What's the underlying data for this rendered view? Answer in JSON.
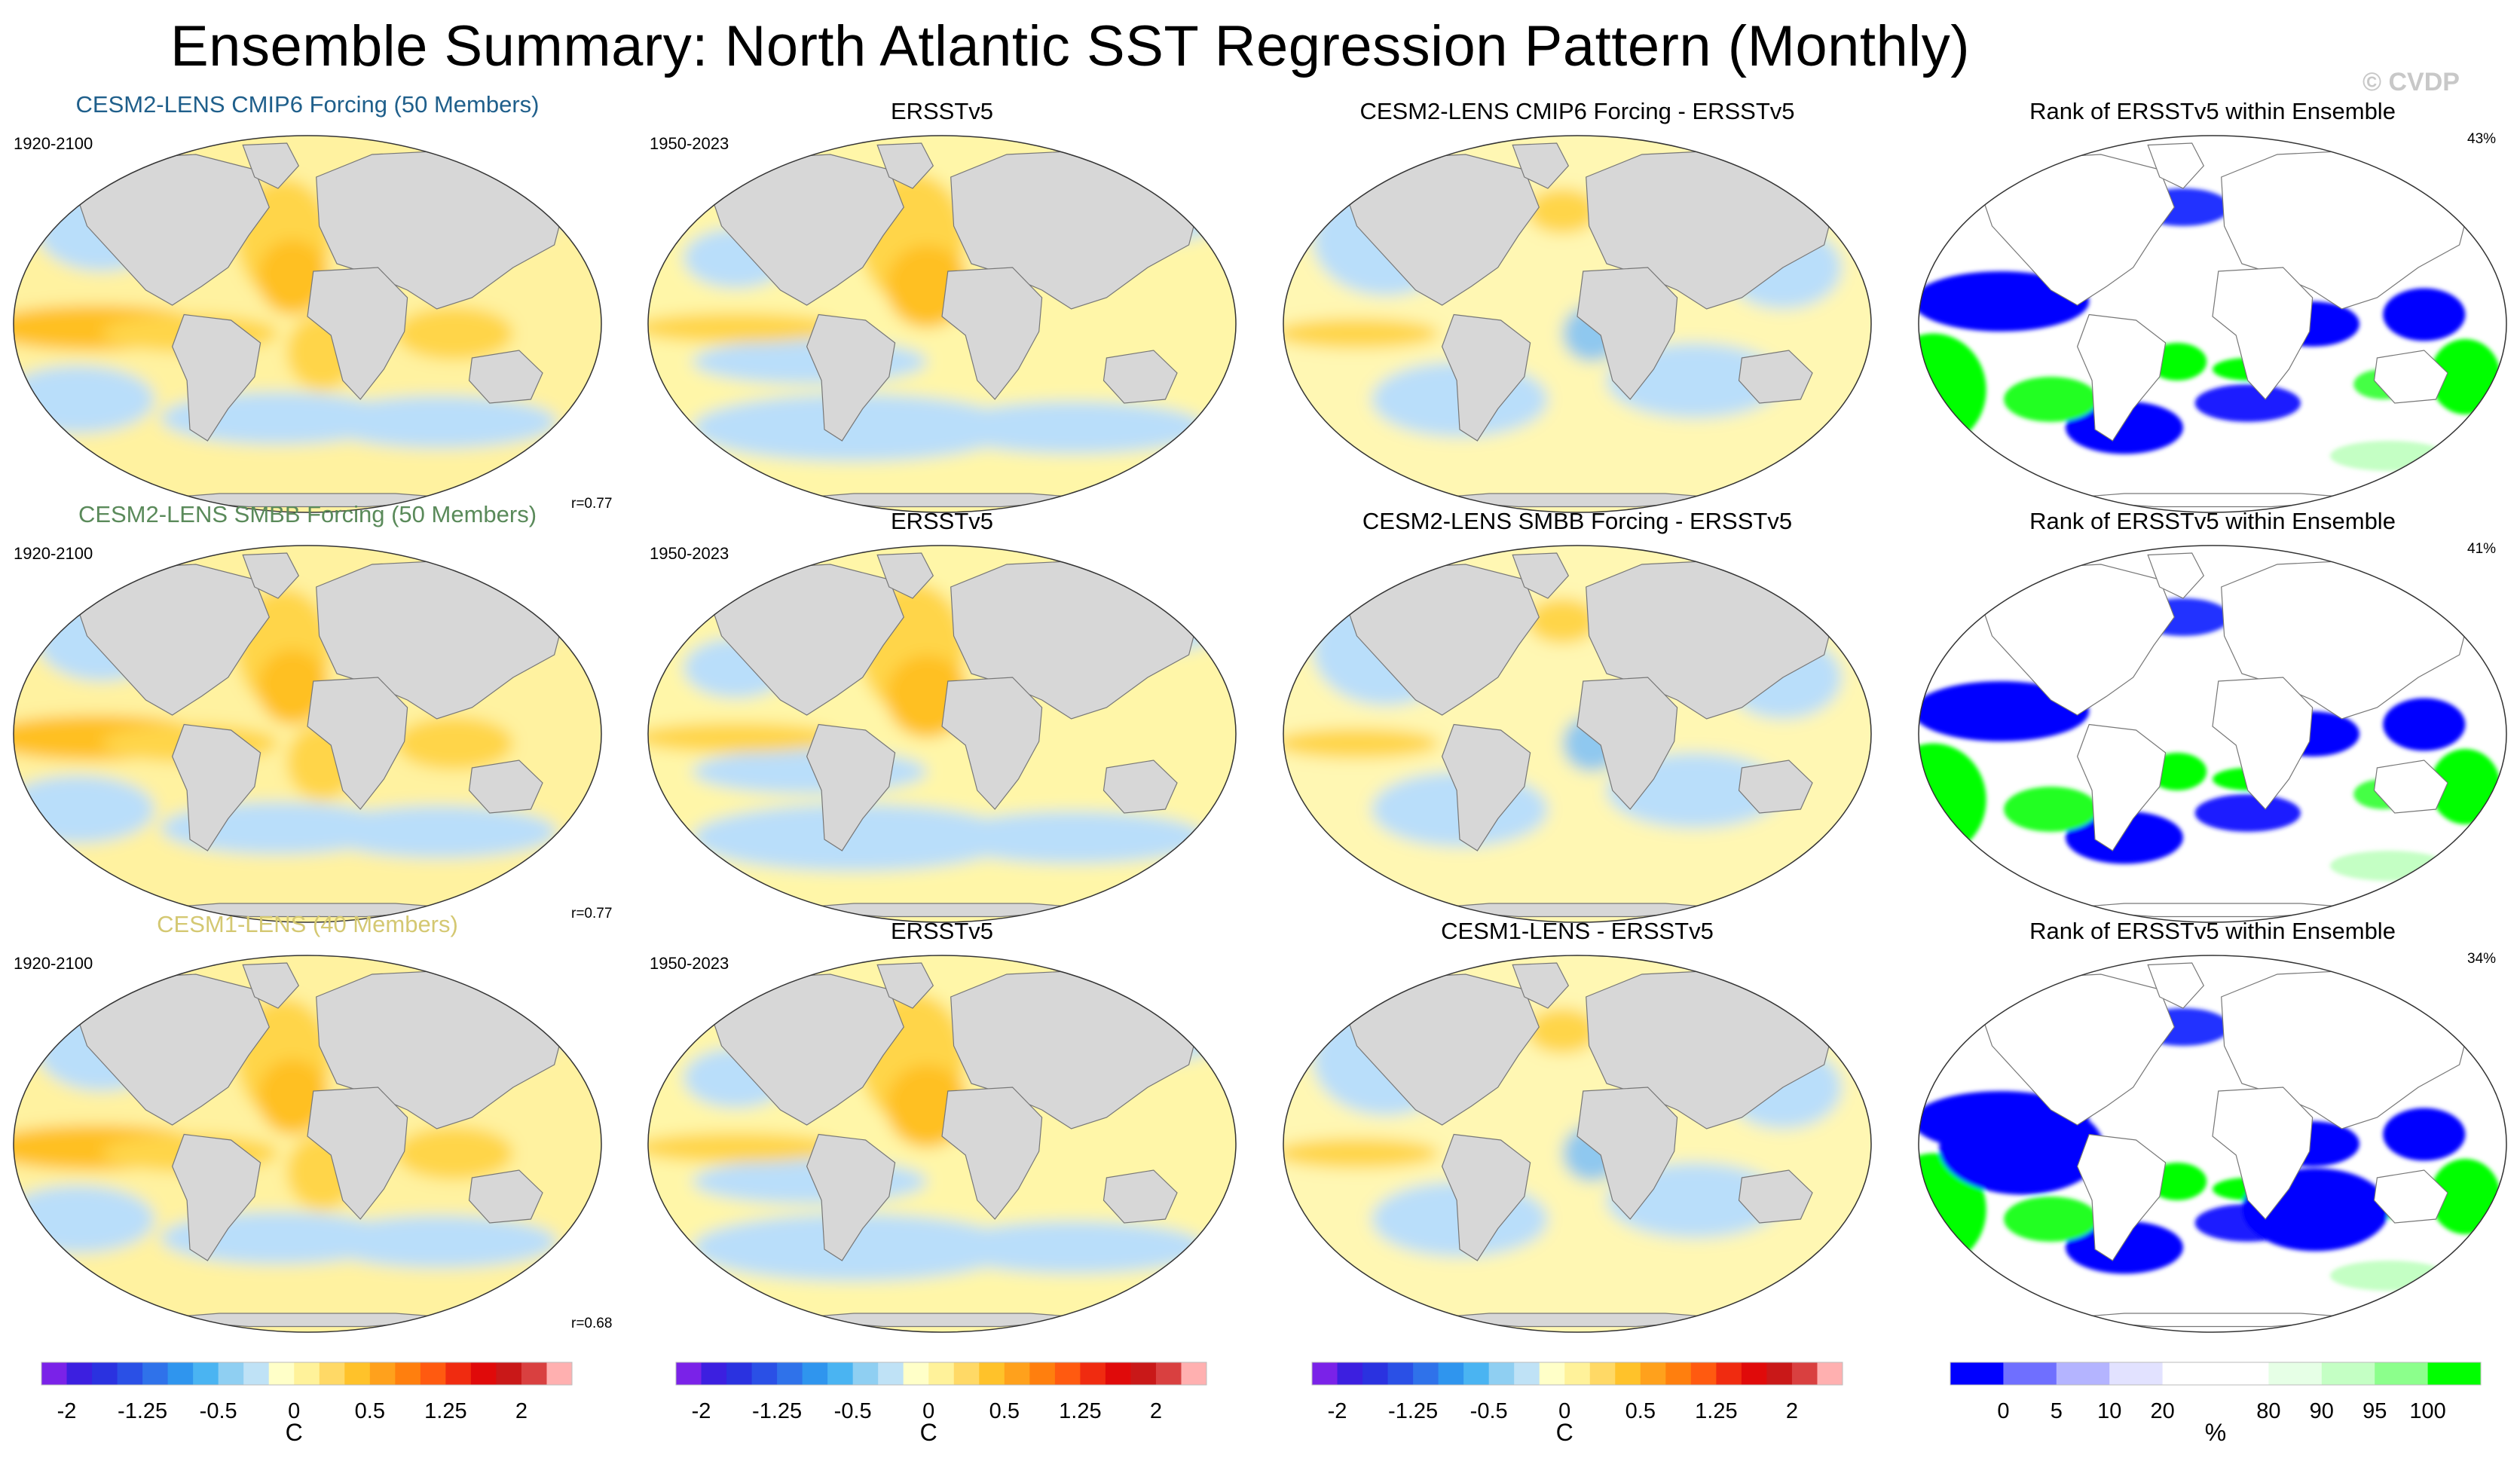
{
  "page": {
    "title": "Ensemble Summary: North Atlantic SST Regression Pattern (Monthly)",
    "watermark": "© CVDP"
  },
  "rows": [
    {
      "ensemble_title": "CESM2-LENS CMIP6 Forcing (50 Members)",
      "ensemble_color": "#1f5f8b",
      "ensemble_period": "1920-2100",
      "pattern_corr": "r=0.77",
      "obs_title": "ERSSTv5",
      "obs_period": "1950-2023",
      "diff_title": "CESM2-LENS CMIP6 Forcing - ERSSTv5",
      "rank_title": "Rank of ERSSTv5 within Ensemble",
      "rank_pct": "43%"
    },
    {
      "ensemble_title": "CESM2-LENS SMBB Forcing (50 Members)",
      "ensemble_color": "#5a8a5a",
      "ensemble_period": "1920-2100",
      "pattern_corr": "r=0.77",
      "obs_title": "ERSSTv5",
      "obs_period": "1950-2023",
      "diff_title": "CESM2-LENS SMBB Forcing - ERSSTv5",
      "rank_title": "Rank of ERSSTv5 within Ensemble",
      "rank_pct": "41%"
    },
    {
      "ensemble_title": "CESM1-LENS (40 Members)",
      "ensemble_color": "#d4c872",
      "ensemble_period": "1920-2100",
      "pattern_corr": "r=0.68",
      "obs_title": "ERSSTv5",
      "obs_period": "1950-2023",
      "diff_title": "CESM1-LENS - ERSSTv5",
      "rank_title": "Rank of ERSSTv5 within Ensemble",
      "rank_pct": "34%"
    }
  ],
  "colorbars": {
    "sst": {
      "unit": "C",
      "labels": [
        "-2",
        "-1.25",
        "-0.5",
        "0",
        "0.5",
        "1.25",
        "2"
      ],
      "colors": [
        "#7a22e8",
        "#3c1fe0",
        "#2a32e0",
        "#2a50e6",
        "#2f72ea",
        "#2f95ee",
        "#4ab4f2",
        "#8fcff2",
        "#bfe2f6",
        "#ffffc8",
        "#fff29a",
        "#ffd966",
        "#ffc22a",
        "#ffa11c",
        "#ff7f0e",
        "#ff5a10",
        "#f02b10",
        "#e00a0a",
        "#c91818",
        "#d94040",
        "#ffb0b0"
      ]
    },
    "rank": {
      "unit": "%",
      "labels": [
        "0",
        "5",
        "10",
        "20",
        "80",
        "90",
        "95",
        "100"
      ],
      "colors": [
        "#0000ff",
        "#6f6fff",
        "#b4b4ff",
        "#e2e2ff",
        "#ffffff",
        "#ffffff",
        "#e6ffe6",
        "#c4ffc4",
        "#8cff8c",
        "#00ff00"
      ]
    }
  },
  "chart_data": {
    "type": "heatmap",
    "title": "Ensemble Summary: North Atlantic SST Regression Pattern (Monthly)",
    "panel_grid": {
      "columns": [
        "ensemble mean pattern",
        "ERSSTv5",
        "ensemble - ERSSTv5",
        "Rank of ERSSTv5 within Ensemble"
      ],
      "rows": [
        "CESM2-LENS CMIP6 Forcing (50 Members)",
        "CESM2-LENS SMBB Forcing (50 Members)",
        "CESM1-LENS (40 Members)"
      ]
    },
    "sst_scale": {
      "unit": "C",
      "levels": [
        -2,
        -1.25,
        -0.5,
        0,
        0.5,
        1.25,
        2
      ]
    },
    "rank_scale": {
      "unit": "%",
      "levels": [
        0,
        5,
        10,
        20,
        80,
        90,
        95,
        100
      ]
    },
    "pattern_correlations": [
      0.77,
      0.77,
      0.68
    ],
    "rank_percent": [
      43,
      41,
      34
    ]
  }
}
